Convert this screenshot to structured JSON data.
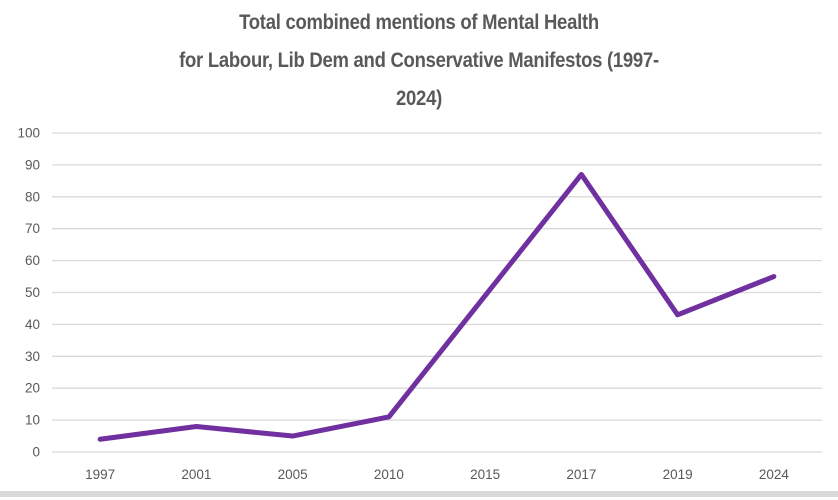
{
  "chart_data": {
    "type": "line",
    "title": "Total combined mentions of Mental Health for Labour, Lib Dem and Conservative Manifestos (1997-2024)",
    "title_lines": [
      "Total combined mentions of Mental Health",
      "for Labour, Lib Dem and Conservative Manifestos (1997-",
      "2024)"
    ],
    "categories": [
      "1997",
      "2001",
      "2005",
      "2010",
      "2015",
      "2017",
      "2019",
      "2024"
    ],
    "values": [
      4,
      8,
      5,
      11,
      49,
      87,
      43,
      55
    ],
    "xlabel": "",
    "ylabel": "",
    "ylim": [
      0,
      100
    ],
    "yticks": [
      0,
      10,
      20,
      30,
      40,
      50,
      60,
      70,
      80,
      90,
      100
    ],
    "grid": "horizontal",
    "legend": "none",
    "colors": {
      "line": "#7030A0",
      "title_text": "#595959",
      "axis_text": "#595959",
      "gridline": "#D9D9D9",
      "bottom_bar": "#D9D9D9",
      "background": "#FFFFFF"
    }
  }
}
